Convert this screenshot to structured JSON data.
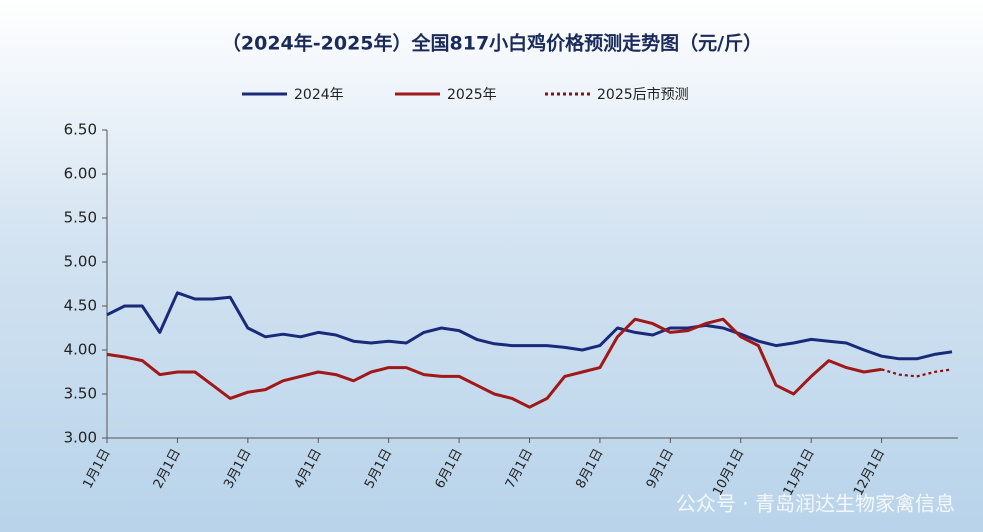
{
  "chart_data": {
    "type": "line",
    "title": "（2024年-2025年）全国817小白鸡价格预测走势图（元/斤）",
    "watermark": "公众号 · 青岛润达生物家禽信息",
    "categories": [
      "1月1日",
      null,
      null,
      null,
      "2月1日",
      null,
      null,
      null,
      "3月1日",
      null,
      null,
      null,
      "4月1日",
      null,
      null,
      null,
      "5月1日",
      null,
      null,
      null,
      "6月1日",
      null,
      null,
      null,
      "7月1日",
      null,
      null,
      null,
      "8月1日",
      null,
      null,
      null,
      "9月1日",
      null,
      null,
      null,
      "10月1日",
      null,
      null,
      null,
      "11月1日",
      null,
      null,
      null,
      "12月1日",
      null,
      null,
      null,
      null
    ],
    "series": [
      {
        "name": "2024年",
        "color": "#1a2a7a",
        "dash": false,
        "values": [
          4.4,
          4.5,
          4.5,
          4.2,
          4.65,
          4.58,
          4.58,
          4.6,
          4.25,
          4.15,
          4.18,
          4.15,
          4.2,
          4.17,
          4.1,
          4.08,
          4.1,
          4.08,
          4.2,
          4.25,
          4.22,
          4.12,
          4.07,
          4.05,
          4.05,
          4.05,
          4.03,
          4.0,
          4.05,
          4.25,
          4.2,
          4.17,
          4.25,
          4.25,
          4.28,
          4.25,
          4.18,
          4.1,
          4.05,
          4.08,
          4.12,
          4.1,
          4.08,
          4.0,
          3.93,
          3.9,
          3.9,
          3.95,
          3.98
        ]
      },
      {
        "name": "2025年",
        "color": "#a01818",
        "dash": false,
        "values": [
          3.95,
          3.92,
          3.88,
          3.72,
          3.75,
          3.75,
          3.6,
          3.45,
          3.52,
          3.55,
          3.65,
          3.7,
          3.75,
          3.72,
          3.65,
          3.75,
          3.8,
          3.8,
          3.72,
          3.7,
          3.7,
          3.6,
          3.5,
          3.45,
          3.35,
          3.45,
          3.7,
          3.75,
          3.8,
          4.15,
          4.35,
          4.3,
          4.2,
          4.22,
          4.3,
          4.35,
          4.15,
          4.05,
          3.6,
          3.5,
          3.7,
          3.88,
          3.8,
          3.75,
          3.78,
          null,
          null,
          null,
          null
        ]
      },
      {
        "name": "2025后市预测",
        "color": "#8a1010",
        "dash": true,
        "values": [
          null,
          null,
          null,
          null,
          null,
          null,
          null,
          null,
          null,
          null,
          null,
          null,
          null,
          null,
          null,
          null,
          null,
          null,
          null,
          null,
          null,
          null,
          null,
          null,
          null,
          null,
          null,
          null,
          null,
          null,
          null,
          null,
          null,
          null,
          null,
          null,
          null,
          null,
          null,
          null,
          null,
          null,
          null,
          null,
          3.78,
          3.72,
          3.7,
          3.75,
          3.78
        ]
      }
    ],
    "ylim": [
      3,
      6.5
    ],
    "yticks": [
      {
        "value": 3,
        "label": "3.00"
      },
      {
        "value": 3.5,
        "label": "3.50"
      },
      {
        "value": 4,
        "label": "4.00"
      },
      {
        "value": 4.5,
        "label": "4.50"
      },
      {
        "value": 5,
        "label": "5.00"
      },
      {
        "value": 5.5,
        "label": "5.50"
      },
      {
        "value": 6,
        "label": "6.00"
      },
      {
        "value": 6.5,
        "label": "6.50"
      }
    ],
    "grid": false,
    "legend": "top"
  }
}
